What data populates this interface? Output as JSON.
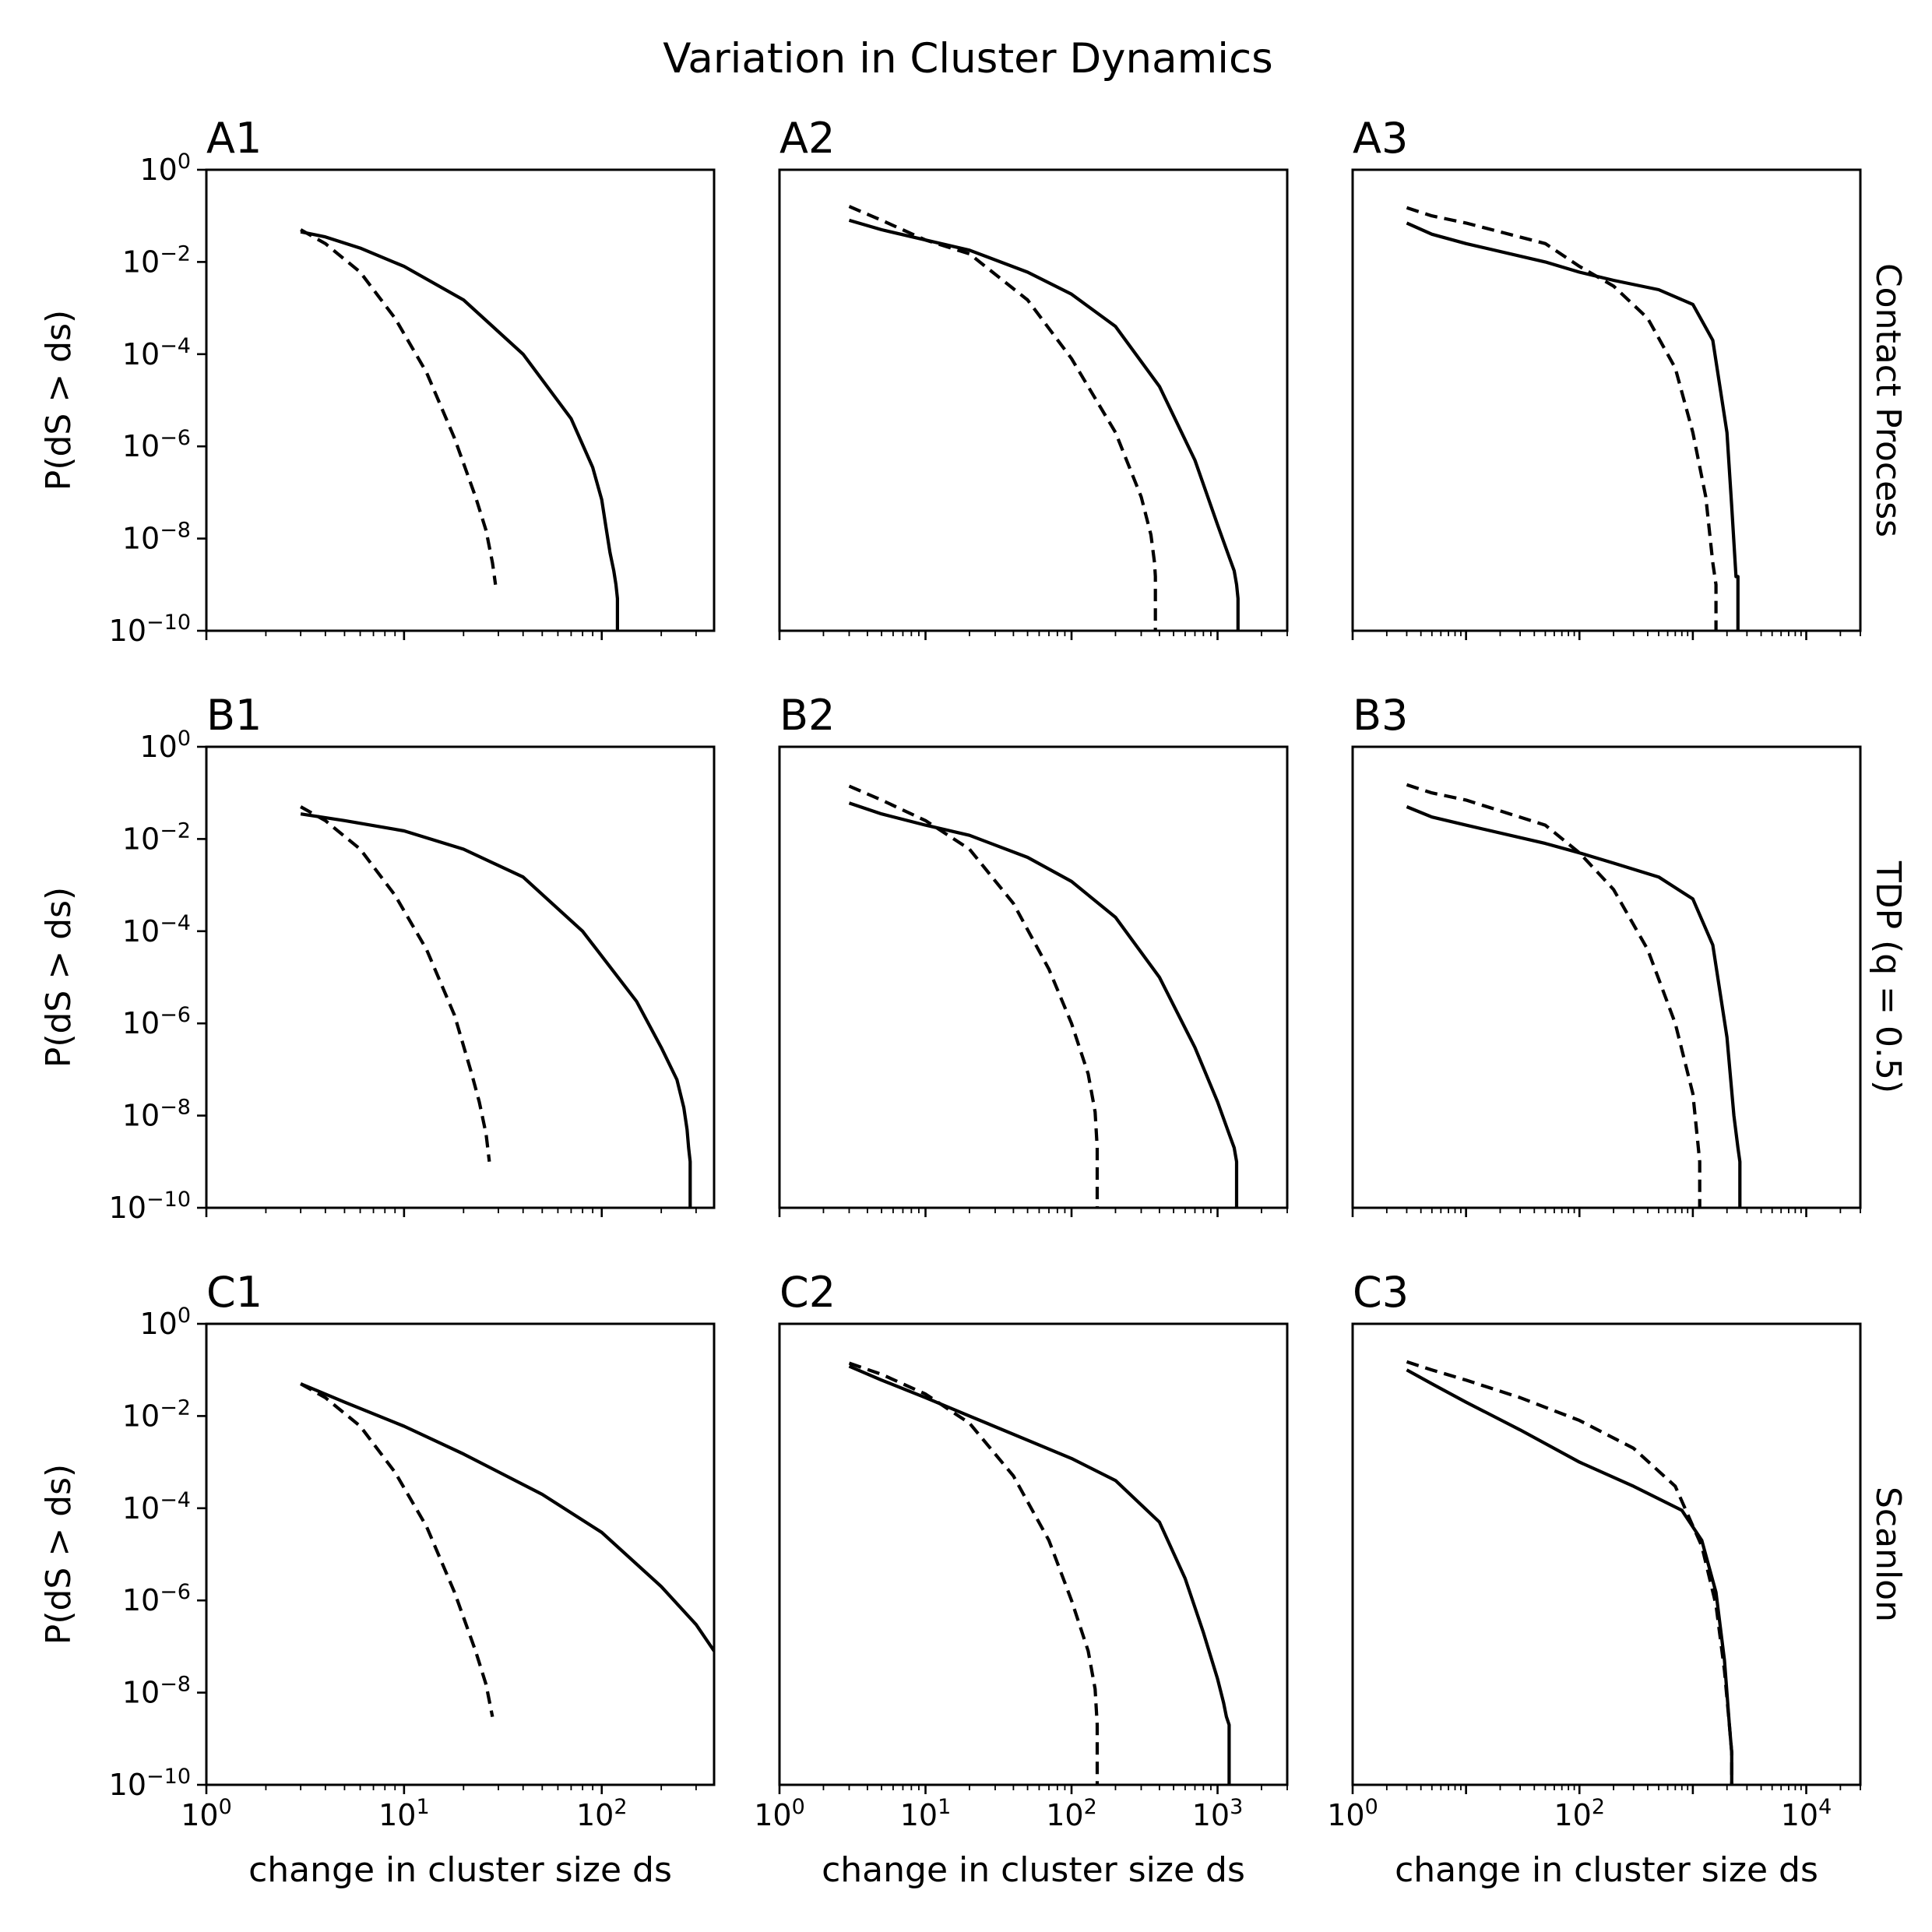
{
  "figure": {
    "title": "Variation in Cluster Dynamics",
    "row_labels": [
      "Contact Process",
      "TDP (q = 0.5)",
      "Scanlon"
    ],
    "x_axis_label": "change in cluster size ds",
    "y_axis_label": "P(dS > ds)",
    "x_ticks": [
      [
        {
          "base": "10",
          "exp": "0",
          "value": 1
        },
        {
          "base": "10",
          "exp": "1",
          "value": 10
        },
        {
          "base": "10",
          "exp": "2",
          "value": 100
        }
      ],
      [
        {
          "base": "10",
          "exp": "0",
          "value": 1
        },
        {
          "base": "10",
          "exp": "1",
          "value": 10
        },
        {
          "base": "10",
          "exp": "2",
          "value": 100
        },
        {
          "base": "10",
          "exp": "3",
          "value": 1000
        }
      ],
      [
        {
          "base": "10",
          "exp": "0",
          "value": 1
        },
        {
          "base": "10",
          "exp": "2",
          "value": 100
        },
        {
          "base": "10",
          "exp": "4",
          "value": 10000
        }
      ]
    ],
    "y_ticks": [
      {
        "base": "10",
        "exp": "0",
        "value": 1
      },
      {
        "base": "10",
        "exp": "−2",
        "value": 0.01
      },
      {
        "base": "10",
        "exp": "−4",
        "value": 0.0001
      },
      {
        "base": "10",
        "exp": "−6",
        "value": 1e-06
      },
      {
        "base": "10",
        "exp": "−8",
        "value": 1e-08
      },
      {
        "base": "10",
        "exp": "−10",
        "value": 1e-10
      }
    ],
    "colors": {
      "background": "#ffffff",
      "ink": "#000000"
    }
  },
  "chart_data": [
    {
      "type": "line",
      "title": "A1",
      "xscale": "log",
      "yscale": "log",
      "xlim": [
        1,
        370
      ],
      "ylim": [
        1e-10,
        1
      ],
      "series": [
        {
          "style": "solid",
          "x": [
            3,
            4,
            6,
            10,
            20,
            40,
            70,
            90,
            100,
            105,
            110,
            115,
            118,
            120,
            120
          ],
          "y": [
            0.045,
            0.035,
            0.02,
            0.008,
            0.0015,
            0.0001,
            4e-06,
            3.5e-07,
            7e-08,
            1.8e-08,
            5e-09,
            2e-09,
            1e-09,
            5e-10,
            1e-10
          ]
        },
        {
          "style": "dashed",
          "x": [
            3,
            4,
            6,
            9,
            13,
            18,
            23,
            26,
            28,
            29
          ],
          "y": [
            0.05,
            0.025,
            0.006,
            0.0006,
            4e-05,
            1.5e-06,
            8e-08,
            1.5e-08,
            3e-09,
            1e-09
          ]
        }
      ]
    },
    {
      "type": "line",
      "title": "A2",
      "xscale": "log",
      "yscale": "log",
      "xlim": [
        1,
        3000
      ],
      "ylim": [
        1e-10,
        1
      ],
      "series": [
        {
          "style": "solid",
          "x": [
            3,
            5,
            10,
            20,
            50,
            100,
            200,
            400,
            700,
            1000,
            1200,
            1300,
            1350,
            1380,
            1380
          ],
          "y": [
            0.08,
            0.05,
            0.03,
            0.018,
            0.006,
            0.002,
            0.0004,
            2e-05,
            5e-07,
            2e-08,
            4e-09,
            2e-09,
            1e-09,
            5e-10,
            1e-10
          ]
        },
        {
          "style": "dashed",
          "x": [
            3,
            5,
            10,
            20,
            50,
            100,
            200,
            300,
            350,
            370,
            375,
            375
          ],
          "y": [
            0.16,
            0.08,
            0.03,
            0.015,
            0.0015,
            8e-05,
            2e-06,
            8e-08,
            1.2e-08,
            3e-09,
            1.5e-09,
            1e-10
          ]
        }
      ]
    },
    {
      "type": "line",
      "title": "A3",
      "xscale": "log",
      "yscale": "log",
      "xlim": [
        1,
        30000
      ],
      "ylim": [
        1e-10,
        1
      ],
      "series": [
        {
          "style": "solid",
          "x": [
            3,
            5,
            10,
            50,
            100,
            200,
            500,
            1000,
            1500,
            2000,
            2200,
            2400,
            2500,
            2500
          ],
          "y": [
            0.07,
            0.04,
            0.025,
            0.01,
            0.006,
            0.004,
            0.0025,
            0.0012,
            0.0002,
            2e-06,
            5e-08,
            1.5e-09,
            1.5e-09,
            1e-10
          ]
        },
        {
          "style": "dashed",
          "x": [
            3,
            5,
            10,
            50,
            100,
            200,
            400,
            700,
            1000,
            1300,
            1500,
            1600,
            1600
          ],
          "y": [
            0.15,
            0.1,
            0.07,
            0.025,
            0.008,
            0.003,
            0.0006,
            5e-05,
            2e-06,
            8e-08,
            3e-09,
            1e-09,
            1e-10
          ]
        }
      ]
    },
    {
      "type": "line",
      "title": "B1",
      "xscale": "log",
      "yscale": "log",
      "xlim": [
        1,
        370
      ],
      "ylim": [
        1e-10,
        1
      ],
      "series": [
        {
          "style": "solid",
          "x": [
            3,
            5,
            10,
            20,
            40,
            80,
            150,
            200,
            240,
            260,
            270,
            275,
            280,
            280
          ],
          "y": [
            0.035,
            0.025,
            0.015,
            0.006,
            0.0015,
            0.0001,
            3e-06,
            3e-07,
            6e-08,
            1.5e-08,
            5e-09,
            2e-09,
            1e-09,
            1e-10
          ]
        },
        {
          "style": "dashed",
          "x": [
            3,
            4,
            6,
            9,
            13,
            18,
            22,
            24,
            26,
            27
          ],
          "y": [
            0.05,
            0.025,
            0.006,
            0.0006,
            4e-05,
            1.5e-06,
            8e-08,
            2e-08,
            4e-09,
            1e-09
          ]
        }
      ]
    },
    {
      "type": "line",
      "title": "B2",
      "xscale": "log",
      "yscale": "log",
      "xlim": [
        1,
        3000
      ],
      "ylim": [
        1e-10,
        1
      ],
      "series": [
        {
          "style": "solid",
          "x": [
            3,
            5,
            10,
            20,
            50,
            100,
            200,
            400,
            700,
            1000,
            1200,
            1300,
            1350,
            1350
          ],
          "y": [
            0.06,
            0.035,
            0.02,
            0.012,
            0.004,
            0.0012,
            0.0002,
            1e-05,
            3e-07,
            2e-08,
            4e-09,
            2e-09,
            1e-09,
            1e-10
          ]
        },
        {
          "style": "dashed",
          "x": [
            3,
            5,
            10,
            20,
            40,
            70,
            100,
            130,
            145,
            150,
            150
          ],
          "y": [
            0.14,
            0.07,
            0.025,
            0.006,
            0.0004,
            1.5e-05,
            1e-06,
            8e-08,
            1.2e-08,
            2e-09,
            1e-10
          ]
        }
      ]
    },
    {
      "type": "line",
      "title": "B3",
      "xscale": "log",
      "yscale": "log",
      "xlim": [
        1,
        30000
      ],
      "ylim": [
        1e-10,
        1
      ],
      "series": [
        {
          "style": "solid",
          "x": [
            3,
            5,
            10,
            50,
            100,
            200,
            500,
            1000,
            1500,
            2000,
            2300,
            2500,
            2600,
            2600
          ],
          "y": [
            0.05,
            0.03,
            0.02,
            0.008,
            0.005,
            0.003,
            0.0015,
            0.0005,
            5e-05,
            5e-07,
            1e-08,
            2e-09,
            1e-09,
            1e-10
          ]
        },
        {
          "style": "dashed",
          "x": [
            3,
            5,
            10,
            50,
            100,
            200,
            400,
            700,
            1000,
            1100,
            1150,
            1150
          ],
          "y": [
            0.15,
            0.1,
            0.07,
            0.02,
            0.005,
            0.0008,
            4e-05,
            1e-06,
            3e-08,
            3e-09,
            1e-09,
            1e-10
          ]
        }
      ]
    },
    {
      "type": "line",
      "title": "C1",
      "xscale": "log",
      "yscale": "log",
      "xlim": [
        1,
        370
      ],
      "ylim": [
        1e-10,
        1
      ],
      "series": [
        {
          "style": "solid",
          "x": [
            3,
            5,
            10,
            20,
            50,
            100,
            200,
            300,
            370
          ],
          "y": [
            0.05,
            0.02,
            0.006,
            0.0015,
            0.0002,
            3e-05,
            2e-06,
            3e-07,
            8e-08
          ]
        },
        {
          "style": "dashed",
          "x": [
            3,
            4,
            6,
            9,
            13,
            18,
            23,
            26,
            28
          ],
          "y": [
            0.05,
            0.025,
            0.006,
            0.0006,
            4e-05,
            1.5e-06,
            8e-08,
            1.5e-08,
            3e-09
          ]
        }
      ]
    },
    {
      "type": "line",
      "title": "C2",
      "xscale": "log",
      "yscale": "log",
      "xlim": [
        1,
        3000
      ],
      "ylim": [
        1e-10,
        1
      ],
      "series": [
        {
          "style": "solid",
          "x": [
            3,
            5,
            10,
            20,
            50,
            100,
            200,
            400,
            600,
            800,
            1000,
            1100,
            1150,
            1200,
            1200
          ],
          "y": [
            0.12,
            0.06,
            0.025,
            0.01,
            0.003,
            0.0012,
            0.0004,
            5e-05,
            3e-06,
            2e-07,
            2e-08,
            6e-09,
            3e-09,
            2e-09,
            1e-10
          ]
        },
        {
          "style": "dashed",
          "x": [
            3,
            5,
            10,
            20,
            40,
            70,
            100,
            130,
            145,
            150,
            150
          ],
          "y": [
            0.14,
            0.08,
            0.03,
            0.007,
            0.0005,
            2e-05,
            1e-06,
            8e-08,
            1.2e-08,
            2e-09,
            1e-10
          ]
        }
      ]
    },
    {
      "type": "line",
      "title": "C3",
      "xscale": "log",
      "yscale": "log",
      "xlim": [
        1,
        30000
      ],
      "ylim": [
        1e-10,
        1
      ],
      "series": [
        {
          "style": "solid",
          "x": [
            3,
            5,
            10,
            30,
            100,
            300,
            800,
            1200,
            1600,
            1900,
            2100,
            2200,
            2200
          ],
          "y": [
            0.1,
            0.05,
            0.02,
            0.005,
            0.001,
            0.0003,
            9e-05,
            2e-05,
            1.5e-06,
            5e-08,
            2e-09,
            5e-10,
            1e-10
          ]
        },
        {
          "style": "dashed",
          "x": [
            3,
            5,
            10,
            30,
            100,
            300,
            700,
            1200,
            1600,
            1900,
            2100,
            2200,
            2200
          ],
          "y": [
            0.15,
            0.1,
            0.06,
            0.025,
            0.008,
            0.002,
            0.0003,
            1.5e-05,
            8e-07,
            3e-08,
            2e-09,
            5e-10,
            1e-10
          ]
        }
      ]
    }
  ]
}
